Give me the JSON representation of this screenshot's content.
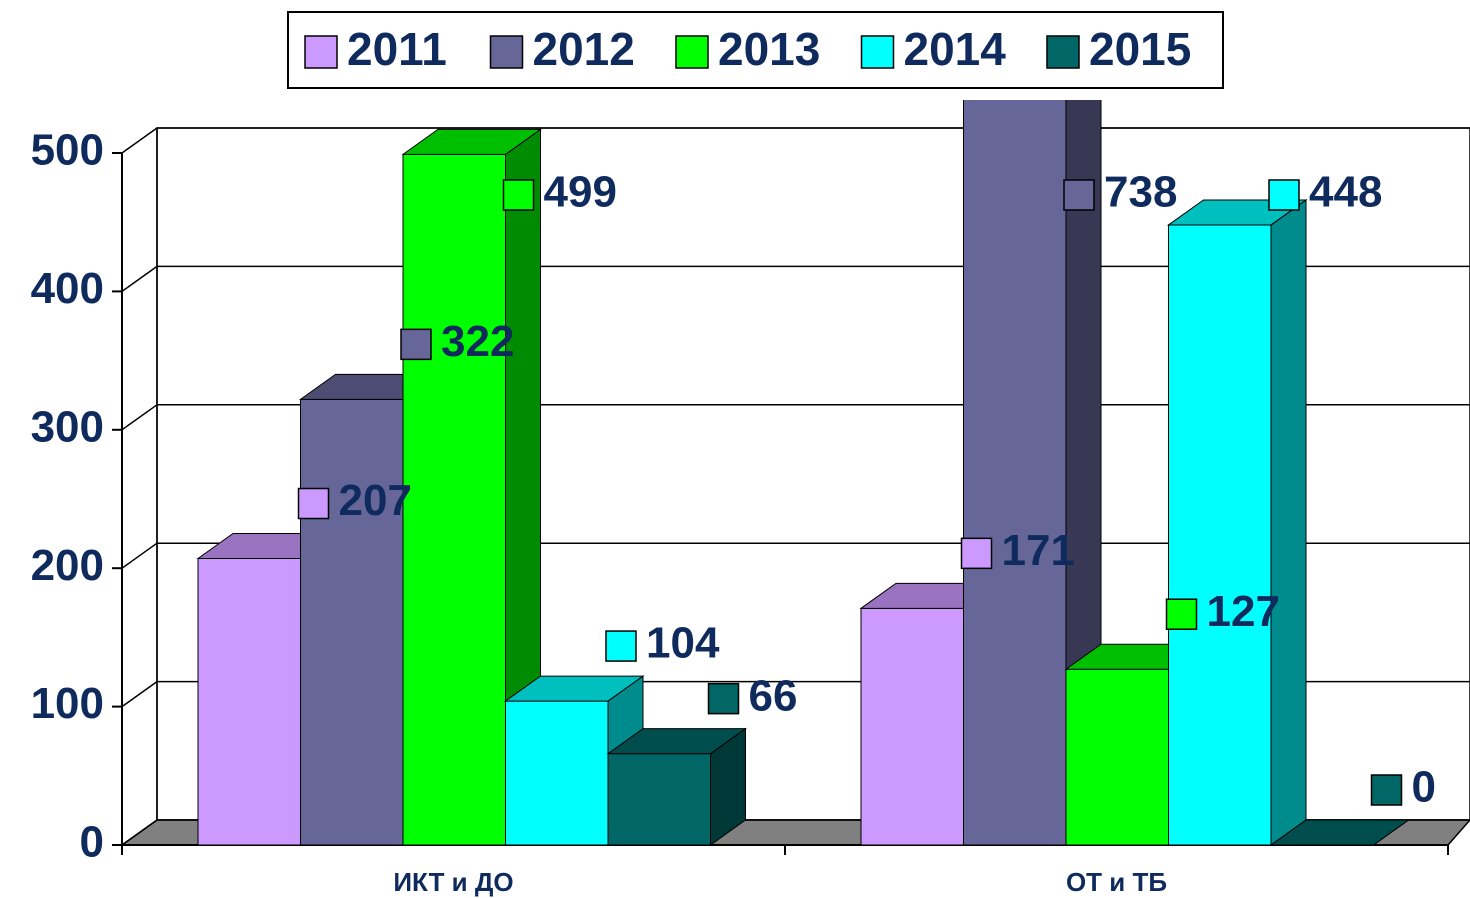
{
  "chart_data": {
    "type": "bar3d",
    "categories": [
      "ИКТ и ДО",
      "ОТ и ТБ"
    ],
    "series": [
      {
        "name": "2011",
        "color": "#cc99ff",
        "values": [
          207,
          171
        ]
      },
      {
        "name": "2012",
        "color": "#666699",
        "values": [
          322,
          738
        ]
      },
      {
        "name": "2013",
        "color": "#00ff00",
        "values": [
          499,
          127
        ]
      },
      {
        "name": "2014",
        "color": "#00ffff",
        "values": [
          104,
          448
        ]
      },
      {
        "name": "2015",
        "color": "#006666",
        "values": [
          66,
          0
        ]
      }
    ],
    "ylim": [
      0,
      500
    ],
    "yticks": [
      0,
      100,
      200,
      300,
      400,
      500
    ],
    "grid": true,
    "legend": "top"
  }
}
